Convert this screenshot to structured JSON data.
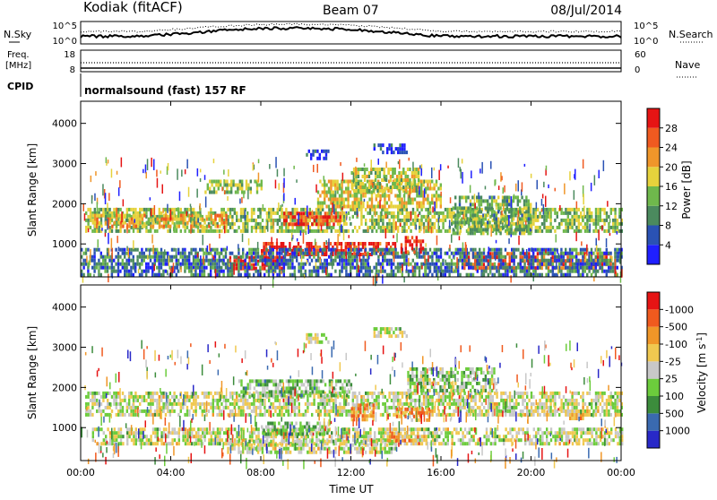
{
  "header": {
    "station": "Kodiak (fitACF)",
    "beam": "Beam 07",
    "date": "08/Jul/2014"
  },
  "noise_panel": {
    "left_label": "N.Sky",
    "right_label": "N.Search",
    "ticks_left": [
      "10^5",
      "10^0"
    ],
    "ticks_right": [
      "10^5",
      "10^0"
    ]
  },
  "freq_panel": {
    "left_label_1": "Freq.",
    "left_label_2": "[MHz]",
    "left_ticks": [
      "18",
      "8"
    ],
    "right_label": "Nave",
    "right_ticks": [
      "60",
      "0"
    ]
  },
  "cpid_panel": {
    "label": "CPID",
    "text": "normalsound (fast) 157 RF"
  },
  "x_axis": {
    "label": "Time UT",
    "ticks": [
      "00:00",
      "04:00",
      "08:00",
      "12:00",
      "16:00",
      "20:00",
      "00:00"
    ]
  },
  "chart_data": [
    {
      "type": "heatmap",
      "xlabel": "Time UT",
      "ylabel": "Slant Range [km]",
      "xlim": [
        0,
        24
      ],
      "ylim": [
        180,
        4550
      ],
      "yticks": [
        1000,
        2000,
        3000,
        4000
      ],
      "colorbar": {
        "label": "Power [dB]",
        "ticks": [
          "4",
          "8",
          "12",
          "16",
          "20",
          "24",
          "28"
        ],
        "colors": [
          "#1f1fff",
          "#2a52b4",
          "#4b8a5e",
          "#6fb84c",
          "#e6d23c",
          "#f0962a",
          "#f05a20",
          "#e61414"
        ]
      },
      "regions": [
        {
          "t": [
            0.2,
            24
          ],
          "r": [
            1350,
            1900
          ],
          "level": 0.45
        },
        {
          "t": [
            0.5,
            6.5
          ],
          "r": [
            1450,
            1750
          ],
          "level": 0.62
        },
        {
          "t": [
            6.5,
            9
          ],
          "r": [
            350,
            700
          ],
          "level": 0.95
        },
        {
          "t": [
            8,
            14
          ],
          "r": [
            700,
            1050
          ],
          "level": 0.9
        },
        {
          "t": [
            9,
            11.5
          ],
          "r": [
            1500,
            1800
          ],
          "level": 0.85
        },
        {
          "t": [
            10.5,
            16
          ],
          "r": [
            1900,
            2600
          ],
          "level": 0.55
        },
        {
          "t": [
            12,
            15
          ],
          "r": [
            2300,
            2900
          ],
          "level": 0.5
        },
        {
          "t": [
            17,
            23.5
          ],
          "r": [
            400,
            800
          ],
          "level": 0.8
        },
        {
          "t": [
            16.5,
            20
          ],
          "r": [
            1300,
            2200
          ],
          "level": 0.4
        },
        {
          "t": [
            5.5,
            8
          ],
          "r": [
            2300,
            2600
          ],
          "level": 0.45
        },
        {
          "t": [
            13,
            14.5
          ],
          "r": [
            3300,
            3500
          ],
          "level": 0.15
        },
        {
          "t": [
            10,
            11
          ],
          "r": [
            3100,
            3350
          ],
          "level": 0.12
        },
        {
          "t": [
            0,
            24
          ],
          "r": [
            200,
            900
          ],
          "level": 0.25
        },
        {
          "t": [
            14.2,
            15.2
          ],
          "r": [
            800,
            1200
          ],
          "level": 0.88
        }
      ]
    },
    {
      "type": "heatmap",
      "xlabel": "Time UT",
      "ylabel": "Slant Range [km]",
      "xlim": [
        0,
        24
      ],
      "ylim": [
        180,
        4550
      ],
      "yticks": [
        1000,
        2000,
        3000,
        4000
      ],
      "colorbar": {
        "label": "Velocity [m s^-1]",
        "ticks": [
          "1000",
          "500",
          "100",
          "25",
          "-25",
          "-100",
          "-500",
          "-1000"
        ],
        "colors": [
          "#2828c8",
          "#3a6ab0",
          "#3c8c3c",
          "#6ccc3c",
          "#c8c8c8",
          "#f0c850",
          "#f09628",
          "#f05a1e",
          "#e61414"
        ]
      },
      "regions": [
        {
          "t": [
            0.2,
            24
          ],
          "r": [
            1300,
            1900
          ],
          "level": 0.5
        },
        {
          "t": [
            0.5,
            24
          ],
          "r": [
            600,
            1000
          ],
          "level": 0.5
        },
        {
          "t": [
            6.5,
            14
          ],
          "r": [
            350,
            700
          ],
          "level": 0.5
        },
        {
          "t": [
            8,
            11
          ],
          "r": [
            850,
            1150
          ],
          "level": 0.38
        },
        {
          "t": [
            12,
            13
          ],
          "r": [
            1200,
            1600
          ],
          "level": 0.72
        },
        {
          "t": [
            14,
            15.5
          ],
          "r": [
            1200,
            1500
          ],
          "level": 0.72
        },
        {
          "t": [
            13.5,
            15
          ],
          "r": [
            650,
            900
          ],
          "level": 0.64
        },
        {
          "t": [
            21.5,
            22.5
          ],
          "r": [
            1200,
            1450
          ],
          "level": 0.64
        },
        {
          "t": [
            7,
            12
          ],
          "r": [
            1800,
            2200
          ],
          "level": 0.38
        },
        {
          "t": [
            14.5,
            18.5
          ],
          "r": [
            1900,
            2500
          ],
          "level": 0.42
        },
        {
          "t": [
            10,
            11
          ],
          "r": [
            3100,
            3350
          ],
          "level": 0.5
        },
        {
          "t": [
            13,
            14.5
          ],
          "r": [
            3300,
            3500
          ],
          "level": 0.5
        }
      ]
    }
  ]
}
